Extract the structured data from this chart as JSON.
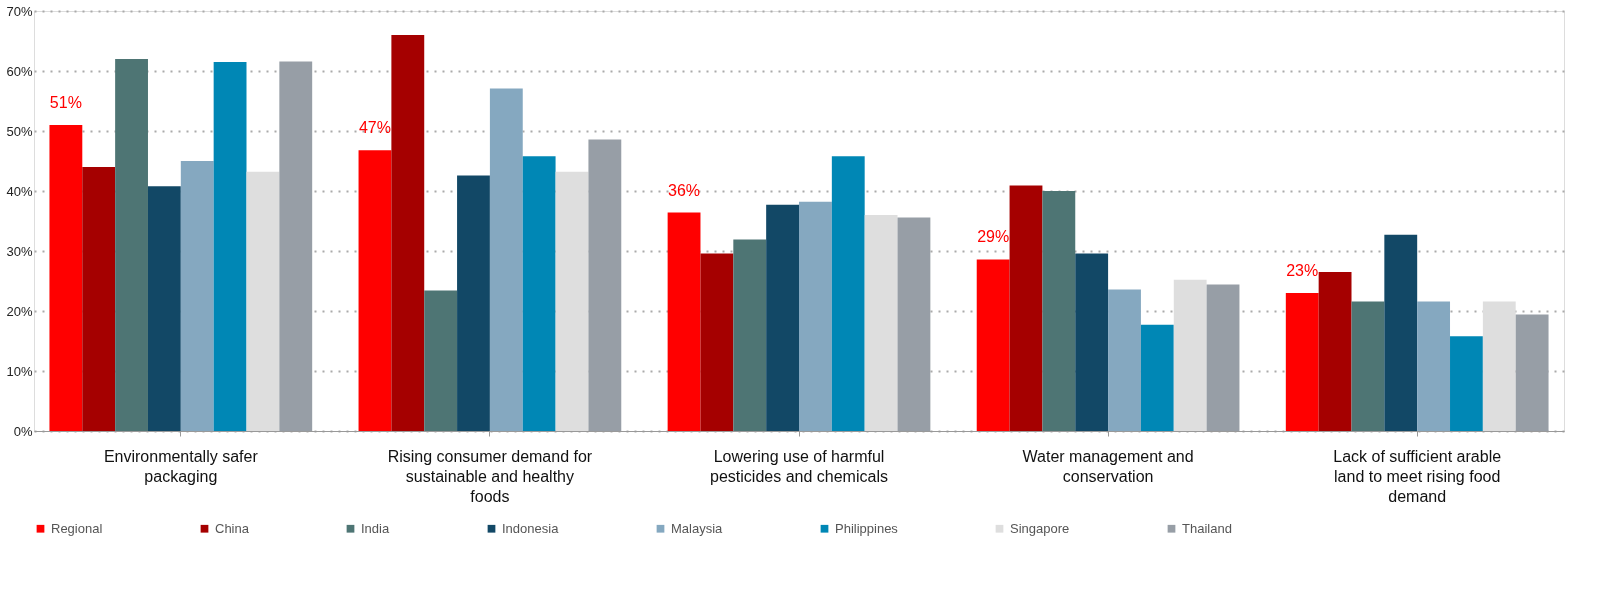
{
  "chart_data": {
    "type": "bar",
    "categories": [
      "Environmentally safer packaging",
      "Rising consumer demand for sustainable and healthy foods",
      "Lowering use of harmful pesticides and chemicals",
      "Water management and conservation",
      "Lack of sufficient arable land to meet rising food demand"
    ],
    "series": [
      {
        "name": "Regional",
        "color": "#ff0000",
        "values": [
          51,
          46.8,
          36.4,
          28.6,
          23
        ],
        "value_labels": [
          "51%",
          "47%",
          "36%",
          "29%",
          "23%"
        ]
      },
      {
        "name": "China",
        "color": "#a50000",
        "values": [
          44,
          66,
          29.6,
          40.9,
          26.5
        ]
      },
      {
        "name": "India",
        "color": "#4e7574",
        "values": [
          62,
          23.4,
          31.9,
          40,
          21.6
        ]
      },
      {
        "name": "Indonesia",
        "color": "#124866",
        "values": [
          40.8,
          42.6,
          37.7,
          29.6,
          32.7
        ]
      },
      {
        "name": "Malaysia",
        "color": "#85a8c0",
        "values": [
          45,
          57.1,
          38.2,
          23.6,
          21.6
        ]
      },
      {
        "name": "Philippines",
        "color": "#0087b5",
        "values": [
          61.5,
          45.8,
          45.8,
          17.7,
          15.8
        ]
      },
      {
        "name": "Singapore",
        "color": "#dedede",
        "values": [
          43.2,
          43.2,
          36,
          25.2,
          21.6
        ]
      },
      {
        "name": "Thailand",
        "color": "#979ea6",
        "values": [
          61.6,
          48.6,
          35.6,
          24.4,
          19.4
        ]
      }
    ],
    "ylim": [
      0,
      70
    ],
    "yticks": [
      {
        "value": 0,
        "label": "0%"
      },
      {
        "value": 10,
        "label": "10%"
      },
      {
        "value": 20,
        "label": "20%"
      },
      {
        "value": 30,
        "label": "30%"
      },
      {
        "value": 40,
        "label": "40%"
      },
      {
        "value": 50,
        "label": "50%"
      },
      {
        "value": 60,
        "label": "60%"
      },
      {
        "value": 70,
        "label": "70%"
      }
    ],
    "grid": "y",
    "legend": "bottom"
  }
}
